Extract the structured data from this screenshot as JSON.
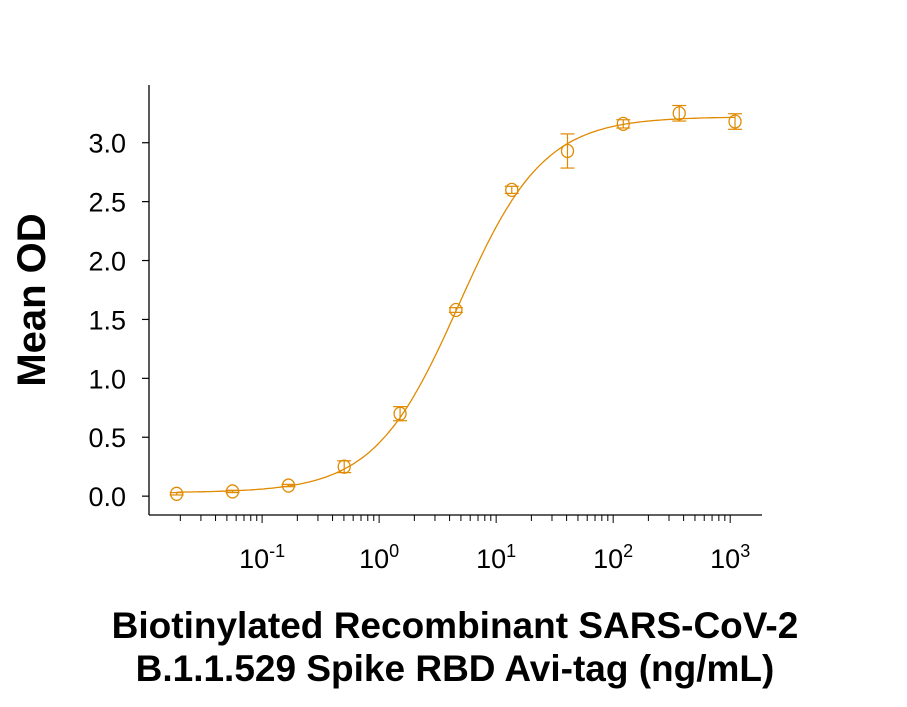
{
  "chart_data": {
    "type": "scatter",
    "xlabel_lines": [
      "Biotinylated Recombinant SARS-CoV-2",
      "B.1.1.529 Spike RBD Avi-tag (ng/mL)"
    ],
    "ylabel": "Mean OD",
    "x_scale": "log",
    "xlim": [
      0.0108,
      1870
    ],
    "ylim": [
      -0.16,
      3.49
    ],
    "x_ticks": [
      {
        "value": 0.1,
        "base": "10",
        "exp": "-1"
      },
      {
        "value": 1,
        "base": "10",
        "exp": "0"
      },
      {
        "value": 10,
        "base": "10",
        "exp": "1"
      },
      {
        "value": 100,
        "base": "10",
        "exp": "2"
      },
      {
        "value": 1000,
        "base": "10",
        "exp": "3"
      }
    ],
    "y_ticks": [
      {
        "value": 0,
        "label": "0.0"
      },
      {
        "value": 0.5,
        "label": "0.5"
      },
      {
        "value": 1,
        "label": "1.0"
      },
      {
        "value": 1.5,
        "label": "1.5"
      },
      {
        "value": 2,
        "label": "2.0"
      },
      {
        "value": 2.5,
        "label": "2.5"
      },
      {
        "value": 3,
        "label": "3.0"
      }
    ],
    "grid": false,
    "color": "#E08A00",
    "marker": "open-circle",
    "fit_curve": "sigmoidal",
    "series": [
      {
        "x": [
          0.0186,
          0.0559,
          0.168,
          0.503,
          1.51,
          4.53,
          13.6,
          40.7,
          122,
          367,
          1100
        ],
        "y": [
          0.02,
          0.04,
          0.09,
          0.25,
          0.7,
          1.58,
          2.6,
          2.93,
          3.16,
          3.25,
          3.18
        ],
        "err": [
          0.01,
          0.01,
          0.01,
          0.05,
          0.06,
          0.02,
          0.03,
          0.145,
          0.035,
          0.066,
          0.066
        ]
      }
    ]
  }
}
